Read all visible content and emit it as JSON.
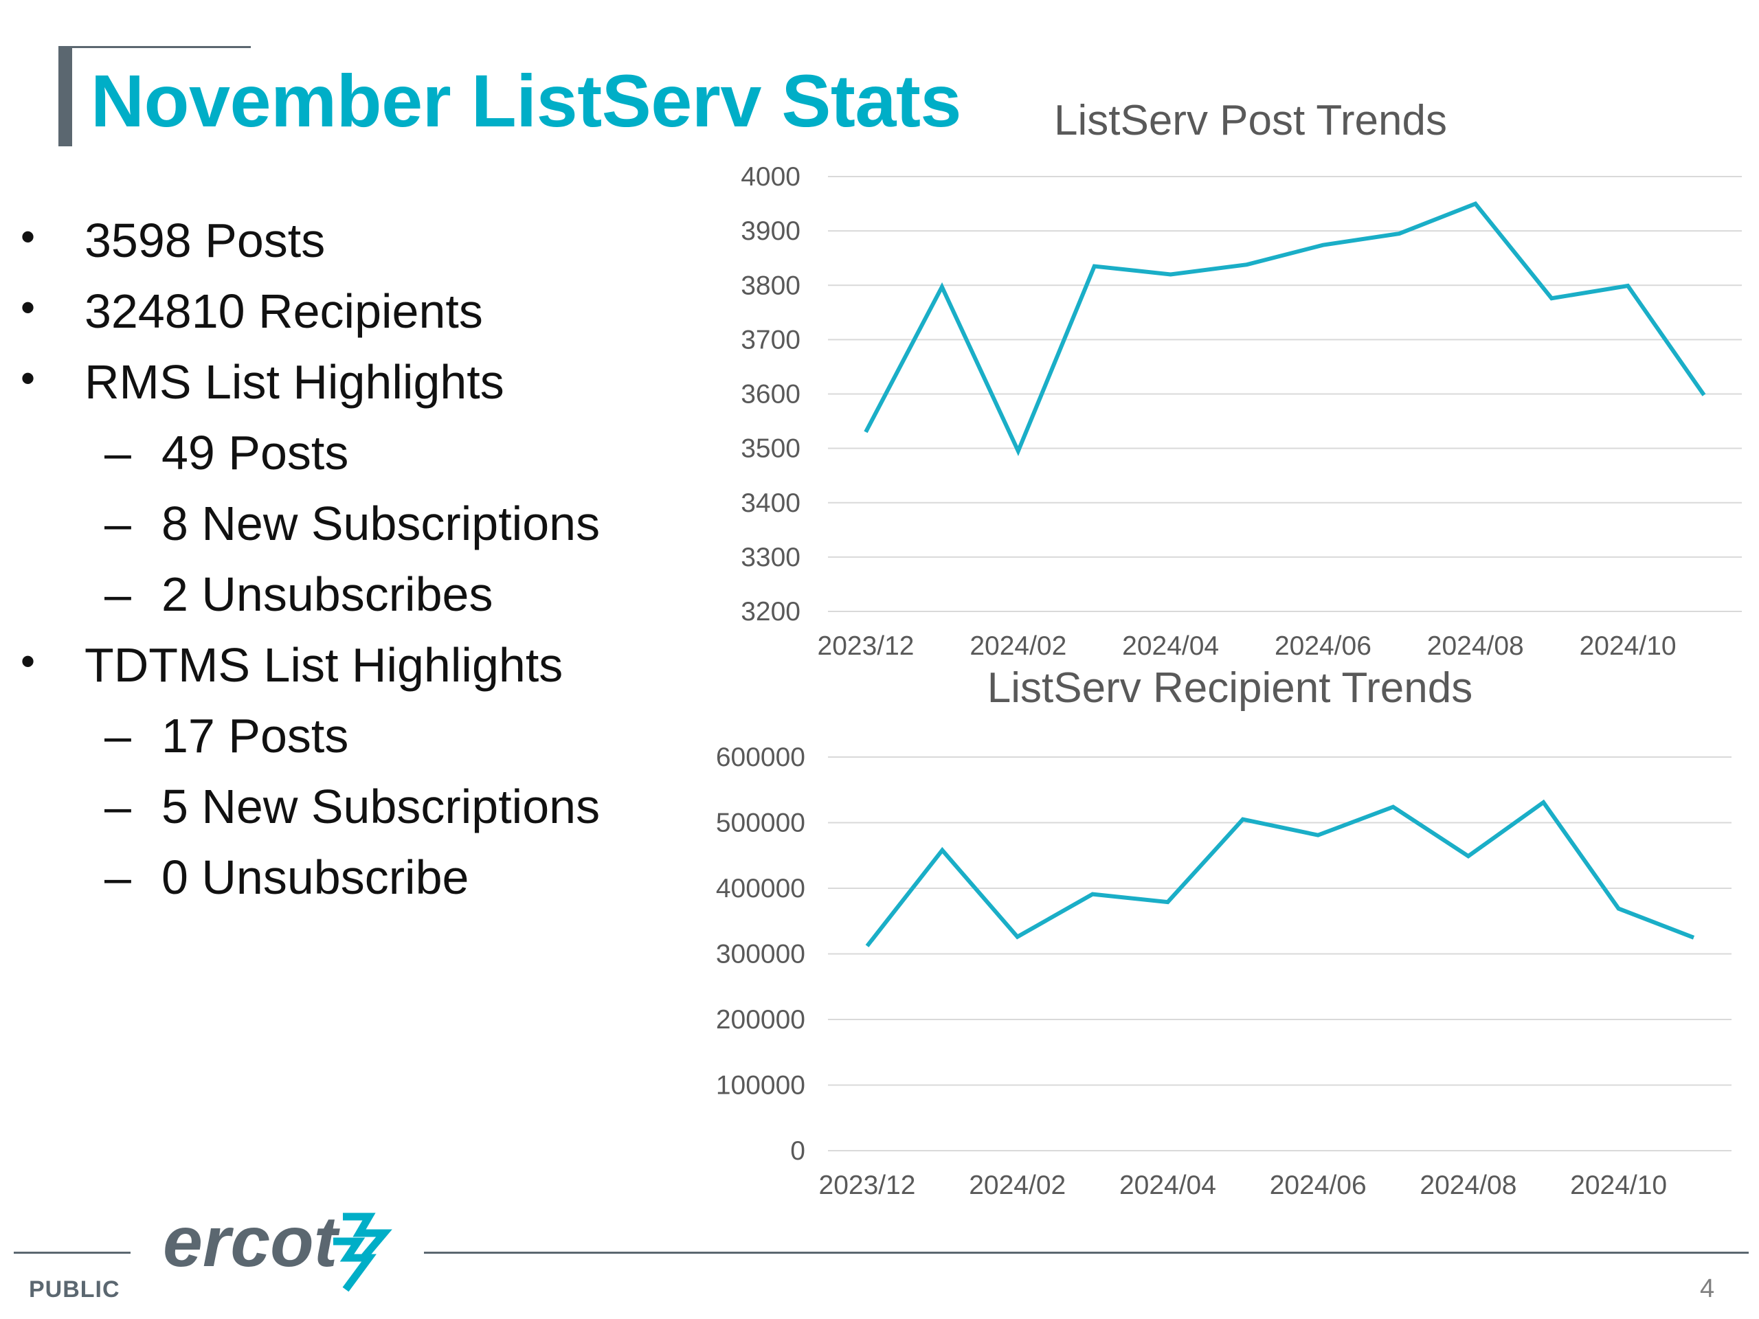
{
  "slide": {
    "title": "November ListServ Stats",
    "footer_label": "PUBLIC",
    "page_number": "4",
    "logo_text": "ercot",
    "accent_color": "#00aec7",
    "brand_gray": "#5b6770"
  },
  "bullets": [
    {
      "level": 1,
      "marker": "•",
      "text": "3598 Posts"
    },
    {
      "level": 1,
      "marker": "•",
      "text": "324810 Recipients"
    },
    {
      "level": 1,
      "marker": "•",
      "text": "RMS List Highlights"
    },
    {
      "level": 2,
      "marker": "–",
      "text": "49 Posts"
    },
    {
      "level": 2,
      "marker": "–",
      "text": "8 New Subscriptions"
    },
    {
      "level": 2,
      "marker": "–",
      "text": "2 Unsubscribes"
    },
    {
      "level": 1,
      "marker": "•",
      "text": "TDTMS List Highlights"
    },
    {
      "level": 2,
      "marker": "–",
      "text": "17 Posts"
    },
    {
      "level": 2,
      "marker": "–",
      "text": "5 New Subscriptions"
    },
    {
      "level": 2,
      "marker": "–",
      "text": "0 Unsubscribe"
    }
  ],
  "chart_data": [
    {
      "type": "line",
      "title": "ListServ Post Trends",
      "x": [
        "2023/12",
        "2024/01",
        "2024/02",
        "2024/03",
        "2024/04",
        "2024/05",
        "2024/06",
        "2024/07",
        "2024/08",
        "2024/09",
        "2024/10",
        "2024/11"
      ],
      "x_tick_labels": [
        "2023/12",
        "2024/02",
        "2024/04",
        "2024/06",
        "2024/08",
        "2024/10"
      ],
      "series": [
        {
          "values": [
            3530,
            3797,
            3495,
            3835,
            3820,
            3838,
            3874,
            3895,
            3950,
            3776,
            3799,
            3598
          ],
          "color": "#1aaec7"
        }
      ],
      "ylim": [
        3200,
        4000
      ],
      "yticks": [
        4000,
        3900,
        3800,
        3700,
        3600,
        3500,
        3400,
        3300,
        3200
      ],
      "grid": true,
      "legend": "none"
    },
    {
      "type": "line",
      "title": "ListServ Recipient Trends",
      "x": [
        "2023/12",
        "2024/01",
        "2024/02",
        "2024/03",
        "2024/04",
        "2024/05",
        "2024/06",
        "2024/07",
        "2024/08",
        "2024/09",
        "2024/10",
        "2024/11"
      ],
      "x_tick_labels": [
        "2023/12",
        "2024/02",
        "2024/04",
        "2024/06",
        "2024/08",
        "2024/10"
      ],
      "series": [
        {
          "values": [
            312000,
            458000,
            326000,
            391000,
            379000,
            505000,
            481000,
            524000,
            449000,
            531000,
            369000,
            324810
          ],
          "color": "#1aaec7"
        }
      ],
      "ylim": [
        0,
        600000
      ],
      "yticks": [
        600000,
        500000,
        400000,
        300000,
        200000,
        100000,
        0
      ],
      "grid": true,
      "legend": "none"
    }
  ]
}
